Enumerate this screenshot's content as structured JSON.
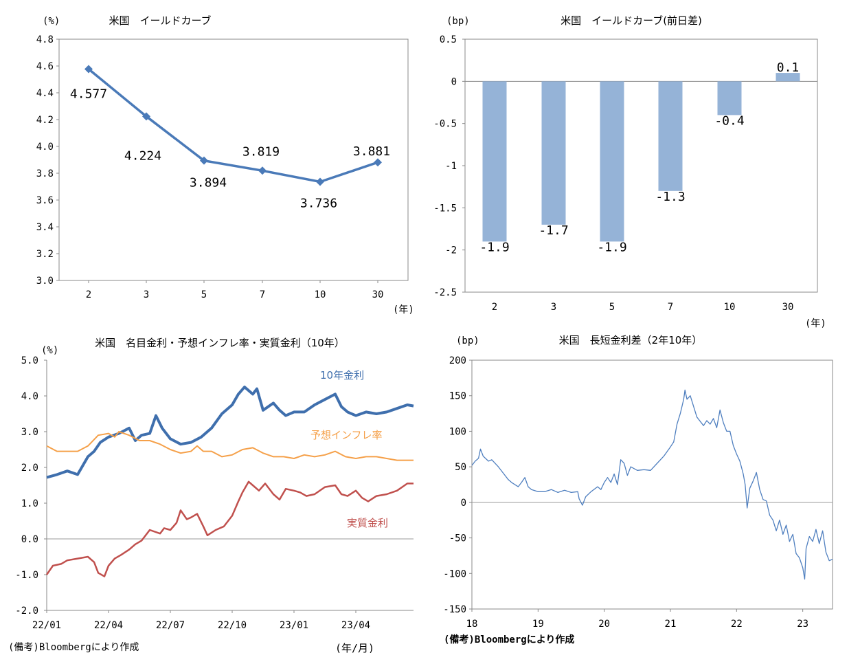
{
  "chart_data": [
    {
      "id": "yield_curve",
      "type": "line",
      "title": "米国　イールドカーブ",
      "ylabel": "(%)",
      "xlabel": "(年)",
      "categories": [
        "2",
        "3",
        "5",
        "7",
        "10",
        "30"
      ],
      "values": [
        4.577,
        4.224,
        3.894,
        3.819,
        3.736,
        3.881
      ],
      "data_labels": [
        "4.577",
        "4.224",
        "3.894",
        "3.819",
        "3.736",
        "3.881"
      ],
      "ylim": [
        3.0,
        4.8
      ],
      "yticks": [
        "3.0",
        "3.2",
        "3.4",
        "3.6",
        "3.8",
        "4.0",
        "4.2",
        "4.4",
        "4.6",
        "4.8"
      ],
      "color": "#4a7ab8"
    },
    {
      "id": "yield_curve_change",
      "type": "bar",
      "title": "米国　イールドカーブ(前日差)",
      "ylabel": "(bp)",
      "xlabel": "(年)",
      "categories": [
        "2",
        "3",
        "5",
        "7",
        "10",
        "30"
      ],
      "values": [
        -1.9,
        -1.7,
        -1.9,
        -1.3,
        -0.4,
        0.1
      ],
      "data_labels": [
        "-1.9",
        "-1.7",
        "-1.9",
        "-1.3",
        "-0.4",
        "0.1"
      ],
      "ylim": [
        -2.5,
        0.5
      ],
      "yticks": [
        "-2.5",
        "-2",
        "-1.5",
        "-1",
        "-0.5",
        "0",
        "0.5"
      ],
      "color": "#95b3d7"
    },
    {
      "id": "real_rates",
      "type": "line",
      "title": "米国　名目金利・予想インフレ率・実質金利（10年）",
      "ylabel": "(%)",
      "xlabel": "(年/月)",
      "ylim": [
        -2.0,
        5.0
      ],
      "yticks": [
        "-2.0",
        "-1.0",
        "0.0",
        "1.0",
        "2.0",
        "3.0",
        "4.0",
        "5.0"
      ],
      "xticks": [
        "22/01",
        "22/04",
        "22/07",
        "22/10",
        "23/01",
        "23/04"
      ],
      "x_range_months": [
        0,
        17.8
      ],
      "source": "(備考)Bloombergにより作成",
      "series": [
        {
          "name": "10年金利",
          "color": "#3f6fad",
          "points": [
            [
              0,
              1.72
            ],
            [
              0.5,
              1.8
            ],
            [
              1,
              1.9
            ],
            [
              1.5,
              1.8
            ],
            [
              2,
              2.3
            ],
            [
              2.3,
              2.45
            ],
            [
              2.6,
              2.7
            ],
            [
              3,
              2.85
            ],
            [
              3.5,
              2.95
            ],
            [
              4,
              3.1
            ],
            [
              4.3,
              2.75
            ],
            [
              4.6,
              2.9
            ],
            [
              5,
              2.95
            ],
            [
              5.3,
              3.45
            ],
            [
              5.6,
              3.1
            ],
            [
              6,
              2.8
            ],
            [
              6.5,
              2.65
            ],
            [
              7,
              2.7
            ],
            [
              7.5,
              2.85
            ],
            [
              8,
              3.1
            ],
            [
              8.5,
              3.5
            ],
            [
              9,
              3.75
            ],
            [
              9.3,
              4.05
            ],
            [
              9.6,
              4.25
            ],
            [
              10,
              4.05
            ],
            [
              10.2,
              4.2
            ],
            [
              10.5,
              3.6
            ],
            [
              11,
              3.8
            ],
            [
              11.3,
              3.6
            ],
            [
              11.6,
              3.45
            ],
            [
              12,
              3.55
            ],
            [
              12.5,
              3.55
            ],
            [
              13,
              3.75
            ],
            [
              13.5,
              3.9
            ],
            [
              14,
              4.05
            ],
            [
              14.3,
              3.7
            ],
            [
              14.6,
              3.55
            ],
            [
              15,
              3.45
            ],
            [
              15.5,
              3.55
            ],
            [
              16,
              3.5
            ],
            [
              16.5,
              3.55
            ],
            [
              17,
              3.65
            ],
            [
              17.5,
              3.75
            ],
            [
              17.8,
              3.72
            ]
          ]
        },
        {
          "name": "予想インフレ率",
          "color": "#f5a049",
          "points": [
            [
              0,
              2.6
            ],
            [
              0.5,
              2.45
            ],
            [
              1,
              2.45
            ],
            [
              1.5,
              2.45
            ],
            [
              2,
              2.6
            ],
            [
              2.5,
              2.9
            ],
            [
              3,
              2.95
            ],
            [
              3.3,
              2.85
            ],
            [
              3.5,
              3.0
            ],
            [
              4,
              2.9
            ],
            [
              4.5,
              2.75
            ],
            [
              5,
              2.75
            ],
            [
              5.5,
              2.65
            ],
            [
              6,
              2.5
            ],
            [
              6.5,
              2.4
            ],
            [
              7,
              2.45
            ],
            [
              7.3,
              2.6
            ],
            [
              7.6,
              2.45
            ],
            [
              8,
              2.45
            ],
            [
              8.5,
              2.3
            ],
            [
              9,
              2.35
            ],
            [
              9.5,
              2.5
            ],
            [
              10,
              2.55
            ],
            [
              10.5,
              2.4
            ],
            [
              11,
              2.3
            ],
            [
              11.5,
              2.3
            ],
            [
              12,
              2.25
            ],
            [
              12.5,
              2.35
            ],
            [
              13,
              2.3
            ],
            [
              13.5,
              2.35
            ],
            [
              14,
              2.45
            ],
            [
              14.5,
              2.3
            ],
            [
              15,
              2.25
            ],
            [
              15.5,
              2.3
            ],
            [
              16,
              2.3
            ],
            [
              16.5,
              2.25
            ],
            [
              17,
              2.2
            ],
            [
              17.8,
              2.2
            ]
          ]
        },
        {
          "name": "実質金利",
          "color": "#c0504d",
          "points": [
            [
              0,
              -1.0
            ],
            [
              0.3,
              -0.75
            ],
            [
              0.7,
              -0.7
            ],
            [
              1,
              -0.6
            ],
            [
              1.5,
              -0.55
            ],
            [
              2,
              -0.5
            ],
            [
              2.3,
              -0.65
            ],
            [
              2.5,
              -0.95
            ],
            [
              2.8,
              -1.05
            ],
            [
              3,
              -0.75
            ],
            [
              3.3,
              -0.55
            ],
            [
              3.6,
              -0.45
            ],
            [
              4,
              -0.3
            ],
            [
              4.3,
              -0.15
            ],
            [
              4.6,
              -0.05
            ],
            [
              5,
              0.25
            ],
            [
              5.5,
              0.15
            ],
            [
              5.7,
              0.3
            ],
            [
              6,
              0.25
            ],
            [
              6.3,
              0.45
            ],
            [
              6.5,
              0.8
            ],
            [
              6.8,
              0.55
            ],
            [
              7,
              0.6
            ],
            [
              7.3,
              0.7
            ],
            [
              7.6,
              0.35
            ],
            [
              7.8,
              0.1
            ],
            [
              8.2,
              0.25
            ],
            [
              8.6,
              0.35
            ],
            [
              9,
              0.65
            ],
            [
              9.3,
              1.05
            ],
            [
              9.5,
              1.3
            ],
            [
              9.8,
              1.6
            ],
            [
              10,
              1.5
            ],
            [
              10.3,
              1.35
            ],
            [
              10.6,
              1.55
            ],
            [
              11,
              1.25
            ],
            [
              11.3,
              1.1
            ],
            [
              11.6,
              1.4
            ],
            [
              12,
              1.35
            ],
            [
              12.3,
              1.3
            ],
            [
              12.6,
              1.2
            ],
            [
              13,
              1.25
            ],
            [
              13.5,
              1.45
            ],
            [
              14,
              1.5
            ],
            [
              14.3,
              1.25
            ],
            [
              14.6,
              1.2
            ],
            [
              15,
              1.35
            ],
            [
              15.3,
              1.15
            ],
            [
              15.6,
              1.05
            ],
            [
              16,
              1.2
            ],
            [
              16.5,
              1.25
            ],
            [
              17,
              1.35
            ],
            [
              17.5,
              1.55
            ],
            [
              17.8,
              1.55
            ]
          ]
        }
      ]
    },
    {
      "id": "term_spread",
      "type": "line",
      "title": "米国　長短金利差（2年10年）",
      "ylabel": "(bp)",
      "ylim": [
        -150,
        200
      ],
      "yticks": [
        "-150",
        "-100",
        "-50",
        "0",
        "50",
        "100",
        "150",
        "200"
      ],
      "xticks": [
        "18",
        "19",
        "20",
        "21",
        "22",
        "23"
      ],
      "x_range_years": [
        0,
        5.45
      ],
      "source": "(備考)Bloombergにより作成",
      "series": [
        {
          "name": "長短金利差",
          "color": "#4f7fbf",
          "points": [
            [
              0,
              52
            ],
            [
              0.05,
              58
            ],
            [
              0.1,
              62
            ],
            [
              0.13,
              75
            ],
            [
              0.17,
              65
            ],
            [
              0.25,
              58
            ],
            [
              0.3,
              60
            ],
            [
              0.4,
              50
            ],
            [
              0.5,
              38
            ],
            [
              0.55,
              32
            ],
            [
              0.6,
              28
            ],
            [
              0.7,
              22
            ],
            [
              0.75,
              28
            ],
            [
              0.8,
              35
            ],
            [
              0.85,
              22
            ],
            [
              0.9,
              18
            ],
            [
              1.0,
              15
            ],
            [
              1.1,
              15
            ],
            [
              1.2,
              18
            ],
            [
              1.3,
              14
            ],
            [
              1.4,
              17
            ],
            [
              1.5,
              14
            ],
            [
              1.6,
              15
            ],
            [
              1.62,
              5
            ],
            [
              1.67,
              -4
            ],
            [
              1.72,
              8
            ],
            [
              1.8,
              15
            ],
            [
              1.9,
              22
            ],
            [
              1.95,
              18
            ],
            [
              2.0,
              28
            ],
            [
              2.05,
              35
            ],
            [
              2.1,
              28
            ],
            [
              2.15,
              40
            ],
            [
              2.2,
              25
            ],
            [
              2.25,
              60
            ],
            [
              2.3,
              55
            ],
            [
              2.35,
              38
            ],
            [
              2.4,
              50
            ],
            [
              2.5,
              45
            ],
            [
              2.6,
              46
            ],
            [
              2.7,
              45
            ],
            [
              2.8,
              55
            ],
            [
              2.9,
              65
            ],
            [
              3.0,
              78
            ],
            [
              3.05,
              85
            ],
            [
              3.1,
              110
            ],
            [
              3.15,
              125
            ],
            [
              3.2,
              145
            ],
            [
              3.22,
              158
            ],
            [
              3.25,
              145
            ],
            [
              3.3,
              150
            ],
            [
              3.35,
              135
            ],
            [
              3.4,
              120
            ],
            [
              3.5,
              108
            ],
            [
              3.55,
              115
            ],
            [
              3.6,
              110
            ],
            [
              3.65,
              118
            ],
            [
              3.7,
              105
            ],
            [
              3.75,
              130
            ],
            [
              3.8,
              112
            ],
            [
              3.85,
              100
            ],
            [
              3.9,
              100
            ],
            [
              3.95,
              80
            ],
            [
              4.0,
              68
            ],
            [
              4.05,
              58
            ],
            [
              4.1,
              40
            ],
            [
              4.13,
              25
            ],
            [
              4.16,
              -8
            ],
            [
              4.2,
              20
            ],
            [
              4.25,
              30
            ],
            [
              4.3,
              42
            ],
            [
              4.35,
              18
            ],
            [
              4.4,
              4
            ],
            [
              4.45,
              2
            ],
            [
              4.5,
              -18
            ],
            [
              4.55,
              -25
            ],
            [
              4.6,
              -40
            ],
            [
              4.65,
              -25
            ],
            [
              4.7,
              -45
            ],
            [
              4.75,
              -32
            ],
            [
              4.8,
              -55
            ],
            [
              4.85,
              -45
            ],
            [
              4.9,
              -72
            ],
            [
              4.95,
              -78
            ],
            [
              5.0,
              -92
            ],
            [
              5.03,
              -108
            ],
            [
              5.05,
              -65
            ],
            [
              5.1,
              -48
            ],
            [
              5.15,
              -55
            ],
            [
              5.2,
              -38
            ],
            [
              5.25,
              -58
            ],
            [
              5.3,
              -40
            ],
            [
              5.35,
              -70
            ],
            [
              5.4,
              -82
            ],
            [
              5.45,
              -80
            ]
          ]
        }
      ]
    }
  ],
  "series_labels": {
    "nominal": "10年金利",
    "inflation": "予想インフレ率",
    "real": "実質金利"
  }
}
